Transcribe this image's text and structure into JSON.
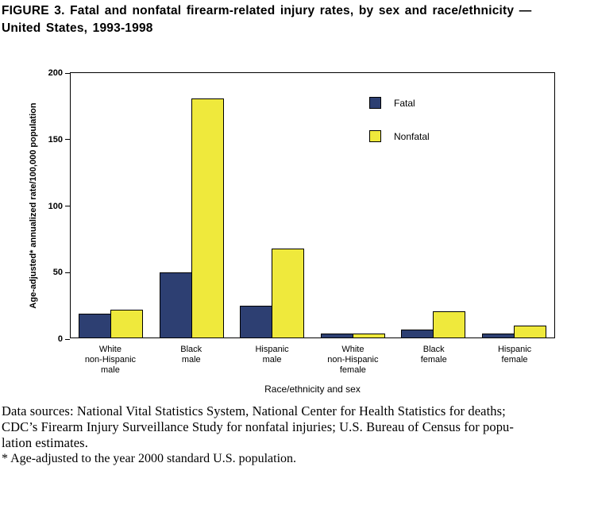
{
  "title": {
    "line1": "FIGURE 3. Fatal and nonfatal firearm-related injury rates, by sex and race/ethnicity —",
    "line2": "United States, 1993-1998"
  },
  "chart_data": {
    "type": "bar",
    "categories": [
      [
        "White",
        "non-Hispanic",
        "male"
      ],
      [
        "Black",
        "male"
      ],
      [
        "Hispanic",
        "male"
      ],
      [
        "White",
        "non-Hispanic",
        "female"
      ],
      [
        "Black",
        "female"
      ],
      [
        "Hispanic",
        "female"
      ]
    ],
    "series": [
      {
        "name": "Fatal",
        "color": "#2d3f72",
        "values": [
          18,
          49,
          24,
          3,
          6,
          3
        ]
      },
      {
        "name": "Nonfatal",
        "color": "#efe93c",
        "values": [
          21,
          180,
          67,
          3,
          20,
          9
        ]
      }
    ],
    "title": "",
    "ylabel": "Age-adjusted* annualized rate/100,000 population",
    "xlabel": "Race/ethnicity and sex",
    "ylim": [
      0,
      200
    ],
    "yticks": [
      0,
      50,
      100,
      150,
      200
    ],
    "grid": false,
    "legend_position": "upper-right-inside"
  },
  "footer": {
    "lines": [
      "Data sources: National Vital Statistics System, National Center for Health Statistics for deaths;",
      "CDC’s Firearm Injury Surveillance Study for nonfatal injuries; U.S. Bureau of Census for popu-",
      "lation estimates."
    ],
    "footnote": "* Age-adjusted to the year 2000 standard U.S. population."
  }
}
